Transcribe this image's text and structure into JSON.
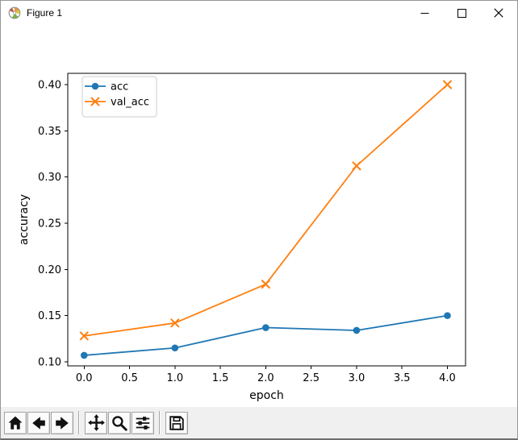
{
  "window": {
    "title": "Figure 1",
    "icon": "matplotlib-logo",
    "controls": [
      {
        "name": "minimize"
      },
      {
        "name": "maximize"
      },
      {
        "name": "close"
      }
    ]
  },
  "chart_data": {
    "type": "line",
    "title": "",
    "xlabel": "epoch",
    "ylabel": "accuracy",
    "x": [
      0,
      1,
      2,
      3,
      4
    ],
    "series": [
      {
        "name": "acc",
        "color": "#1f77b4",
        "marker": "circle",
        "values": [
          0.107,
          0.115,
          0.137,
          0.134,
          0.15
        ]
      },
      {
        "name": "val_acc",
        "color": "#ff7f0e",
        "marker": "x",
        "values": [
          0.128,
          0.142,
          0.184,
          0.312,
          0.4
        ]
      }
    ],
    "xlim": [
      -0.18,
      4.2
    ],
    "ylim": [
      0.0956,
      0.4122
    ],
    "xticks": [
      0.0,
      0.5,
      1.0,
      1.5,
      2.0,
      2.5,
      3.0,
      3.5,
      4.0
    ],
    "yticks": [
      0.1,
      0.15,
      0.2,
      0.25,
      0.3,
      0.35,
      0.4
    ],
    "legend": {
      "position": "upper left",
      "entries": [
        "acc",
        "val_acc"
      ]
    },
    "grid": false
  },
  "toolbar": {
    "buttons": [
      {
        "name": "home",
        "icon": "home-icon"
      },
      {
        "name": "back",
        "icon": "back-arrow-icon"
      },
      {
        "name": "forward",
        "icon": "forward-arrow-icon"
      },
      {
        "name": "pan",
        "icon": "pan-move-icon"
      },
      {
        "name": "zoom",
        "icon": "zoom-magnifier-icon"
      },
      {
        "name": "configure-subplots",
        "icon": "sliders-icon"
      },
      {
        "name": "save",
        "icon": "floppy-disk-icon"
      }
    ]
  },
  "colors": {
    "titlebar_bg": "#ffffff",
    "canvas_bg": "#ffffff",
    "toolbar_bg": "#f0f0f0",
    "spine": "#000000",
    "legend_border": "#cccccc",
    "accent_blue": "#1f77b4",
    "accent_orange": "#ff7f0e"
  }
}
